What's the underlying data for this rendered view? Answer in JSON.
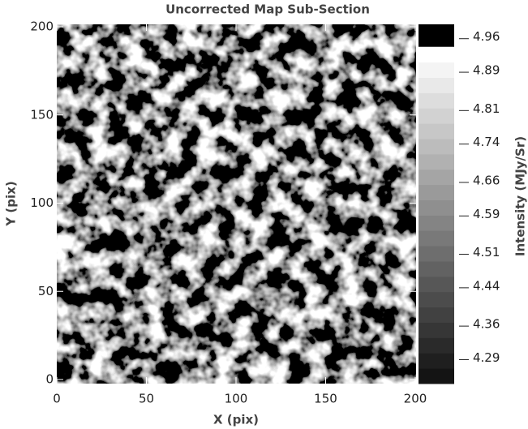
{
  "chart_data": {
    "type": "heatmap",
    "title": "Uncorrected Map Sub-Section",
    "x_label": "X (pix)",
    "y_label": "Y (pix)",
    "xlim": [
      0,
      200
    ],
    "xticks": [
      0,
      50,
      100,
      150,
      200
    ],
    "ylim": [
      0,
      200
    ],
    "yticks": [
      0,
      50,
      100,
      150,
      200
    ],
    "colorbar": {
      "label": "Intensity (MJy/Sr)",
      "lim": [
        4.24,
        4.99
      ],
      "ticks": [
        4.29,
        4.36,
        4.44,
        4.51,
        4.59,
        4.66,
        4.74,
        4.81,
        4.89,
        4.96
      ]
    }
  }
}
